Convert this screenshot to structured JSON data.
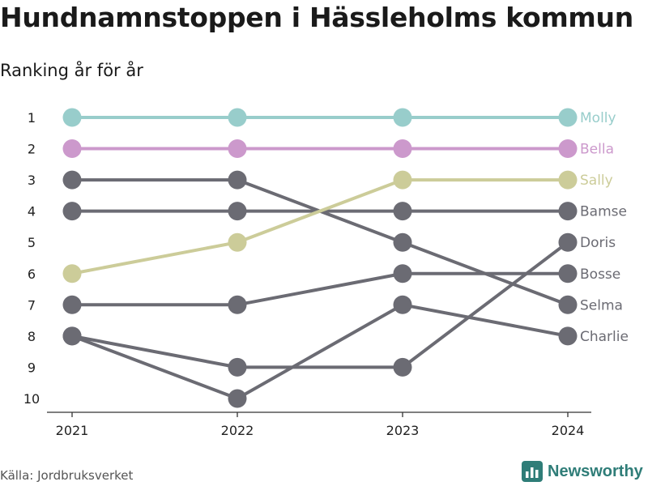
{
  "header": {
    "title": "Hundnamnstoppen i Hässleholms kommun",
    "subtitle": "Ranking år för år"
  },
  "footer": {
    "source": "Källa: Jordbruksverket",
    "brand": "Newsworthy",
    "brand_icon": "bar-chart-logo-icon"
  },
  "colors": {
    "Molly": "#98cdcb",
    "Bella": "#cc99cc",
    "Sally": "#cccc99",
    "default": "#6b6b73",
    "axis": "#333333",
    "brand": "#2f7d78"
  },
  "chart_data": {
    "type": "line",
    "title": "Hundnamnstoppen i Hässleholms kommun",
    "subtitle": "Ranking år för år",
    "x": [
      "2021",
      "2022",
      "2023",
      "2024"
    ],
    "y_ticks": [
      1,
      2,
      3,
      4,
      5,
      6,
      7,
      8,
      9,
      10
    ],
    "y_reversed": true,
    "ylim": [
      1,
      10
    ],
    "legend": "end-labels-right",
    "series": [
      {
        "name": "Molly",
        "values": [
          1,
          1,
          1,
          1
        ]
      },
      {
        "name": "Bella",
        "values": [
          2,
          2,
          2,
          2
        ]
      },
      {
        "name": "Sally",
        "values": [
          6,
          5,
          3,
          3
        ]
      },
      {
        "name": "Bamse",
        "values": [
          4,
          4,
          4,
          4
        ]
      },
      {
        "name": "Doris",
        "values": [
          8,
          9,
          9,
          5
        ]
      },
      {
        "name": "Bosse",
        "values": [
          7,
          7,
          6,
          6
        ]
      },
      {
        "name": "Selma",
        "values": [
          3,
          3,
          5,
          7
        ]
      },
      {
        "name": "Charlie",
        "values": [
          8,
          10,
          7,
          8
        ]
      }
    ]
  }
}
